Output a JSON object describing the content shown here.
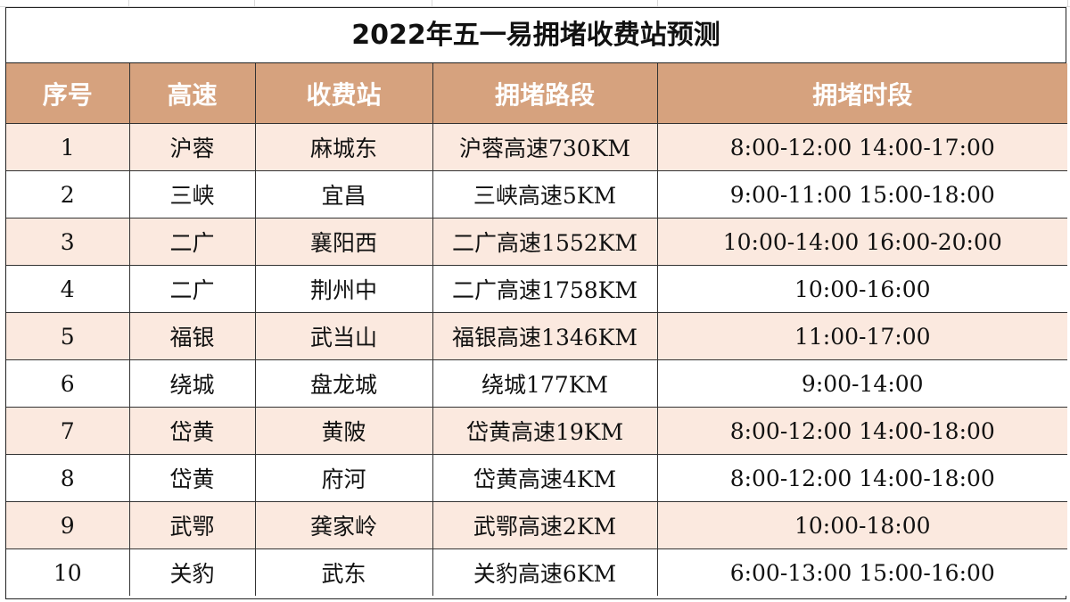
{
  "title": "2022年五一易拥堵收费站预测",
  "columns": [
    "序号",
    "高速",
    "收费站",
    "拥堵路段",
    "拥堵时段"
  ],
  "rows": [
    [
      "1",
      "沪蓉",
      "麻城东",
      "沪蓉高速730KM",
      "8:00-12:00 14:00-17:00"
    ],
    [
      "2",
      "三峡",
      "宜昌",
      "三峡高速5KM",
      "9:00-11:00 15:00-18:00"
    ],
    [
      "3",
      "二广",
      "襄阳西",
      "二广高速1552KM",
      "10:00-14:00 16:00-20:00"
    ],
    [
      "4",
      "二广",
      "荆州中",
      "二广高速1758KM",
      "10:00-16:00"
    ],
    [
      "5",
      "福银",
      "武当山",
      "福银高速1346KM",
      "11:00-17:00"
    ],
    [
      "6",
      "绕城",
      "盘龙城",
      "绕城177KM",
      "9:00-14:00"
    ],
    [
      "7",
      "岱黄",
      "黄陂",
      "岱黄高速19KM",
      "8:00-12:00 14:00-18:00"
    ],
    [
      "8",
      "岱黄",
      "府河",
      "岱黄高速4KM",
      "8:00-12:00 14:00-18:00"
    ],
    [
      "9",
      "武鄂",
      "龚家岭",
      "武鄂高速2KM",
      "10:00-18:00"
    ],
    [
      "10",
      "关豹",
      "武东",
      "关豹高速6KM",
      "6:00-13:00 15:00-16:00"
    ]
  ],
  "colors": {
    "header_bg": "#d6a27e",
    "header_text": "#ffffff",
    "row_alt_bg": "#fbe9df",
    "row_bg": "#ffffff",
    "border": "#333333"
  }
}
